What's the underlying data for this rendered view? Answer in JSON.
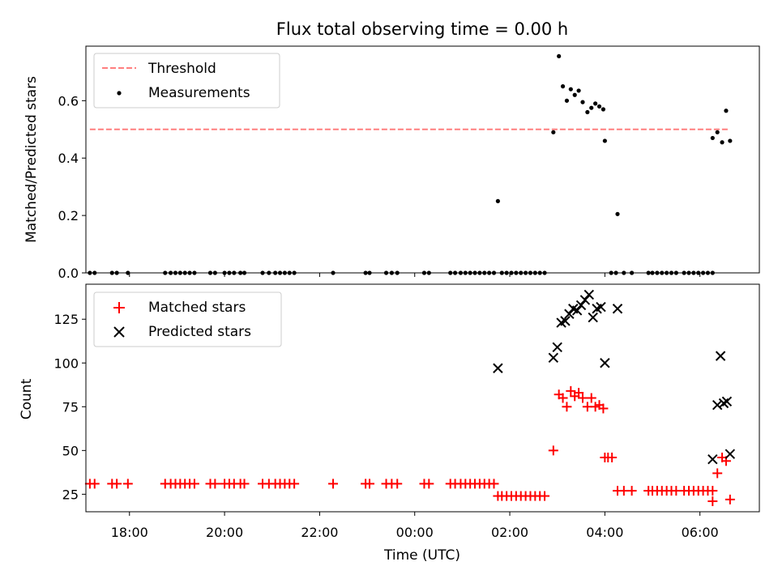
{
  "title": "Flux total observing time = 0.00 h",
  "colors": {
    "threshold": "#ff7f7f",
    "measurement": "#000000",
    "matched": "#ff0000",
    "predicted": "#000000"
  },
  "chart_data": [
    {
      "type": "scatter",
      "panel": "top",
      "ylabel": "Matched/Predicted stars",
      "xlabel": "",
      "xlim": [
        "17:05",
        "07:15"
      ],
      "ylim": [
        0,
        0.79
      ],
      "yticks": [
        0.0,
        0.2,
        0.4,
        0.6
      ],
      "ytick_labels": [
        "0.0",
        "0.2",
        "0.4",
        "0.6"
      ],
      "legend": {
        "position": "upper left",
        "entries": [
          "Threshold",
          "Measurements"
        ]
      },
      "threshold": {
        "name": "Threshold",
        "y": 0.5,
        "x_range": [
          "17:10",
          "06:38"
        ],
        "style": "dashed"
      },
      "series": [
        {
          "name": "Measurements",
          "marker": "dot",
          "points": [
            [
              "17:10",
              0
            ],
            [
              "17:16",
              0
            ],
            [
              "17:38",
              0
            ],
            [
              "17:44",
              0
            ],
            [
              "17:58",
              0
            ],
            [
              "18:45",
              0
            ],
            [
              "18:52",
              0
            ],
            [
              "18:58",
              0
            ],
            [
              "19:04",
              0
            ],
            [
              "19:10",
              0
            ],
            [
              "19:16",
              0
            ],
            [
              "19:22",
              0
            ],
            [
              "19:42",
              0
            ],
            [
              "19:48",
              0
            ],
            [
              "20:00",
              0
            ],
            [
              "20:06",
              0
            ],
            [
              "20:12",
              0
            ],
            [
              "20:20",
              0
            ],
            [
              "20:25",
              0
            ],
            [
              "20:48",
              0
            ],
            [
              "20:56",
              0
            ],
            [
              "21:04",
              0
            ],
            [
              "21:10",
              0
            ],
            [
              "21:16",
              0
            ],
            [
              "21:22",
              0
            ],
            [
              "21:28",
              0
            ],
            [
              "22:17",
              0
            ],
            [
              "22:58",
              0
            ],
            [
              "23:03",
              0
            ],
            [
              "23:24",
              0
            ],
            [
              "23:31",
              0
            ],
            [
              "23:38",
              0
            ],
            [
              "00:12",
              0
            ],
            [
              "00:18",
              0
            ],
            [
              "00:45",
              0
            ],
            [
              "00:51",
              0
            ],
            [
              "00:58",
              0
            ],
            [
              "01:04",
              0
            ],
            [
              "01:10",
              0
            ],
            [
              "01:16",
              0
            ],
            [
              "01:22",
              0
            ],
            [
              "01:28",
              0
            ],
            [
              "01:34",
              0
            ],
            [
              "01:40",
              0
            ],
            [
              "01:45",
              0.25
            ],
            [
              "01:50",
              0
            ],
            [
              "01:56",
              0
            ],
            [
              "02:02",
              0
            ],
            [
              "02:08",
              0
            ],
            [
              "02:14",
              0
            ],
            [
              "02:20",
              0
            ],
            [
              "02:26",
              0
            ],
            [
              "02:32",
              0
            ],
            [
              "02:38",
              0
            ],
            [
              "02:44",
              0
            ],
            [
              "02:55",
              0.49
            ],
            [
              "03:02",
              0.755
            ],
            [
              "03:07",
              0.65
            ],
            [
              "03:12",
              0.6
            ],
            [
              "03:17",
              0.64
            ],
            [
              "03:22",
              0.62
            ],
            [
              "03:27",
              0.635
            ],
            [
              "03:32",
              0.595
            ],
            [
              "03:38",
              0.56
            ],
            [
              "03:43",
              0.575
            ],
            [
              "03:48",
              0.59
            ],
            [
              "03:53",
              0.58
            ],
            [
              "03:58",
              0.57
            ],
            [
              "04:00",
              0.46
            ],
            [
              "04:08",
              0
            ],
            [
              "04:14",
              0
            ],
            [
              "04:16",
              0.205
            ],
            [
              "04:24",
              0
            ],
            [
              "04:34",
              0
            ],
            [
              "04:55",
              0
            ],
            [
              "05:00",
              0
            ],
            [
              "05:06",
              0
            ],
            [
              "05:12",
              0
            ],
            [
              "05:18",
              0
            ],
            [
              "05:24",
              0
            ],
            [
              "05:30",
              0
            ],
            [
              "05:40",
              0
            ],
            [
              "05:46",
              0
            ],
            [
              "05:52",
              0
            ],
            [
              "05:58",
              0
            ],
            [
              "06:04",
              0
            ],
            [
              "06:10",
              0
            ],
            [
              "06:16",
              0
            ],
            [
              "06:16",
              0.47
            ],
            [
              "06:22",
              0.49
            ],
            [
              "06:28",
              0.455
            ],
            [
              "06:33",
              0.565
            ],
            [
              "06:38",
              0.46
            ]
          ]
        }
      ]
    },
    {
      "type": "scatter",
      "panel": "bottom",
      "ylabel": "Count",
      "xlabel": "Time (UTC)",
      "xlim": [
        "17:05",
        "07:15"
      ],
      "ylim": [
        15,
        145
      ],
      "yticks": [
        25,
        50,
        75,
        100,
        125
      ],
      "ytick_labels": [
        "25",
        "50",
        "75",
        "100",
        "125"
      ],
      "xticks": [
        "18:00",
        "20:00",
        "22:00",
        "00:00",
        "02:00",
        "04:00",
        "06:00"
      ],
      "legend": {
        "position": "upper left",
        "entries": [
          "Matched stars",
          "Predicted stars"
        ]
      },
      "series": [
        {
          "name": "Matched stars",
          "marker": "plus",
          "points": [
            [
              "17:10",
              31
            ],
            [
              "17:16",
              31
            ],
            [
              "17:38",
              31
            ],
            [
              "17:44",
              31
            ],
            [
              "17:58",
              31
            ],
            [
              "18:45",
              31
            ],
            [
              "18:52",
              31
            ],
            [
              "18:58",
              31
            ],
            [
              "19:04",
              31
            ],
            [
              "19:10",
              31
            ],
            [
              "19:16",
              31
            ],
            [
              "19:22",
              31
            ],
            [
              "19:42",
              31
            ],
            [
              "19:48",
              31
            ],
            [
              "20:00",
              31
            ],
            [
              "20:06",
              31
            ],
            [
              "20:12",
              31
            ],
            [
              "20:20",
              31
            ],
            [
              "20:25",
              31
            ],
            [
              "20:48",
              31
            ],
            [
              "20:56",
              31
            ],
            [
              "21:04",
              31
            ],
            [
              "21:10",
              31
            ],
            [
              "21:16",
              31
            ],
            [
              "21:22",
              31
            ],
            [
              "21:28",
              31
            ],
            [
              "22:17",
              31
            ],
            [
              "22:58",
              31
            ],
            [
              "23:03",
              31
            ],
            [
              "23:24",
              31
            ],
            [
              "23:31",
              31
            ],
            [
              "23:38",
              31
            ],
            [
              "00:12",
              31
            ],
            [
              "00:18",
              31
            ],
            [
              "00:45",
              31
            ],
            [
              "00:51",
              31
            ],
            [
              "00:58",
              31
            ],
            [
              "01:04",
              31
            ],
            [
              "01:10",
              31
            ],
            [
              "01:16",
              31
            ],
            [
              "01:22",
              31
            ],
            [
              "01:28",
              31
            ],
            [
              "01:34",
              31
            ],
            [
              "01:40",
              31
            ],
            [
              "01:45",
              24
            ],
            [
              "01:50",
              24
            ],
            [
              "01:56",
              24
            ],
            [
              "02:02",
              24
            ],
            [
              "02:08",
              24
            ],
            [
              "02:14",
              24
            ],
            [
              "02:20",
              24
            ],
            [
              "02:26",
              24
            ],
            [
              "02:32",
              24
            ],
            [
              "02:38",
              24
            ],
            [
              "02:44",
              24
            ],
            [
              "02:55",
              50
            ],
            [
              "03:02",
              82
            ],
            [
              "03:07",
              80
            ],
            [
              "03:12",
              75
            ],
            [
              "03:17",
              84
            ],
            [
              "03:22",
              81
            ],
            [
              "03:27",
              83
            ],
            [
              "03:32",
              80
            ],
            [
              "03:38",
              75
            ],
            [
              "03:43",
              80
            ],
            [
              "03:48",
              75
            ],
            [
              "03:53",
              76
            ],
            [
              "03:58",
              74
            ],
            [
              "04:00",
              46
            ],
            [
              "04:04",
              46
            ],
            [
              "04:09",
              46
            ],
            [
              "04:16",
              27
            ],
            [
              "04:24",
              27
            ],
            [
              "04:34",
              27
            ],
            [
              "04:55",
              27
            ],
            [
              "05:00",
              27
            ],
            [
              "05:06",
              27
            ],
            [
              "05:12",
              27
            ],
            [
              "05:18",
              27
            ],
            [
              "05:24",
              27
            ],
            [
              "05:30",
              27
            ],
            [
              "05:40",
              27
            ],
            [
              "05:46",
              27
            ],
            [
              "05:52",
              27
            ],
            [
              "05:58",
              27
            ],
            [
              "06:04",
              27
            ],
            [
              "06:10",
              27
            ],
            [
              "06:16",
              27
            ],
            [
              "06:16",
              21
            ],
            [
              "06:22",
              37
            ],
            [
              "06:28",
              46
            ],
            [
              "06:33",
              44
            ],
            [
              "06:38",
              22
            ]
          ]
        },
        {
          "name": "Predicted stars",
          "marker": "x",
          "points": [
            [
              "01:45",
              97
            ],
            [
              "02:55",
              103
            ],
            [
              "03:00",
              109
            ],
            [
              "03:05",
              123
            ],
            [
              "03:10",
              124
            ],
            [
              "03:15",
              128
            ],
            [
              "03:20",
              131
            ],
            [
              "03:25",
              130
            ],
            [
              "03:30",
              133
            ],
            [
              "03:35",
              136
            ],
            [
              "03:40",
              139
            ],
            [
              "03:45",
              126
            ],
            [
              "03:50",
              131
            ],
            [
              "03:55",
              132
            ],
            [
              "04:00",
              100
            ],
            [
              "04:16",
              131
            ],
            [
              "06:16",
              45
            ],
            [
              "06:22",
              76
            ],
            [
              "06:26",
              104
            ],
            [
              "06:30",
              77
            ],
            [
              "06:34",
              78
            ],
            [
              "06:38",
              48
            ]
          ]
        }
      ]
    }
  ]
}
